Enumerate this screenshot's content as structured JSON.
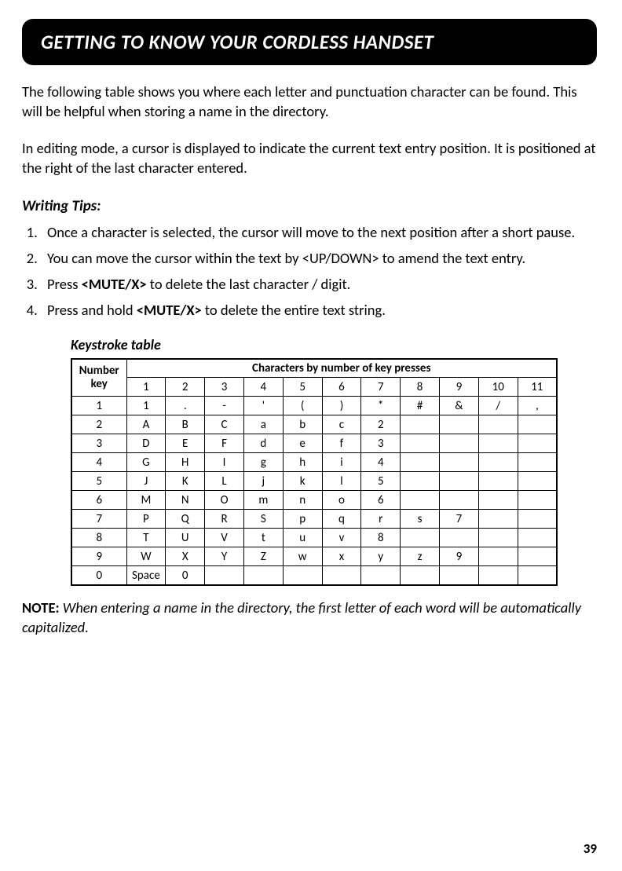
{
  "header": "GETTING TO KNOW YOUR CORDLESS HANDSET",
  "para1": "The following table shows you where each letter and punctuation character can be found. This will be helpful when storing a name in the directory.",
  "para2": "In editing mode, a cursor is displayed to indicate the current text entry position. It is positioned at the right of the last character entered.",
  "tips_heading": "Writing Tips:",
  "tips": [
    {
      "pre": "Once a character is selected, the cursor will move to the next position after a short pause.",
      "bold": "",
      "post": ""
    },
    {
      "pre": "You can move the cursor within the text by <UP/DOWN> to amend the text entry.",
      "bold": "",
      "post": ""
    },
    {
      "pre": "Press ",
      "bold": "<MUTE/X>",
      "post": " to delete the last character / digit."
    },
    {
      "pre": "Press and hold ",
      "bold": "<MUTE/X>",
      "post": " to delete the entire text string."
    }
  ],
  "table_title": "Keystroke table",
  "table": {
    "corner_label": "Number key",
    "span_header": "Characters by number of key presses",
    "press_counts": [
      "1",
      "2",
      "3",
      "4",
      "5",
      "6",
      "7",
      "8",
      "9",
      "10",
      "11"
    ],
    "rows": [
      {
        "key": "1",
        "cells": [
          "1",
          ".",
          "-",
          "'",
          "(",
          ")",
          "*",
          "#",
          "&",
          "/",
          ","
        ]
      },
      {
        "key": "2",
        "cells": [
          "A",
          "B",
          "C",
          "a",
          "b",
          "c",
          "2",
          "",
          "",
          "",
          ""
        ]
      },
      {
        "key": "3",
        "cells": [
          "D",
          "E",
          "F",
          "d",
          "e",
          "f",
          "3",
          "",
          "",
          "",
          ""
        ]
      },
      {
        "key": "4",
        "cells": [
          "G",
          "H",
          "I",
          "g",
          "h",
          "i",
          "4",
          "",
          "",
          "",
          ""
        ]
      },
      {
        "key": "5",
        "cells": [
          "J",
          "K",
          "L",
          "j",
          "k",
          "l",
          "5",
          "",
          "",
          "",
          ""
        ]
      },
      {
        "key": "6",
        "cells": [
          "M",
          "N",
          "O",
          "m",
          "n",
          "o",
          "6",
          "",
          "",
          "",
          ""
        ]
      },
      {
        "key": "7",
        "cells": [
          "P",
          "Q",
          "R",
          "S",
          "p",
          "q",
          "r",
          "s",
          "7",
          "",
          ""
        ]
      },
      {
        "key": "8",
        "cells": [
          "T",
          "U",
          "V",
          "t",
          "u",
          "v",
          "8",
          "",
          "",
          "",
          ""
        ]
      },
      {
        "key": "9",
        "cells": [
          "W",
          "X",
          "Y",
          "Z",
          "w",
          "x",
          "y",
          "z",
          "9",
          "",
          ""
        ]
      },
      {
        "key": "0",
        "cells": [
          "Space",
          "0",
          "",
          "",
          "",
          "",
          "",
          "",
          "",
          "",
          ""
        ]
      }
    ]
  },
  "note_lead": "NOTE:",
  "note_body": " When entering a name in the directory, the first letter of each word will be automatically capitalized.",
  "page_number": "39"
}
